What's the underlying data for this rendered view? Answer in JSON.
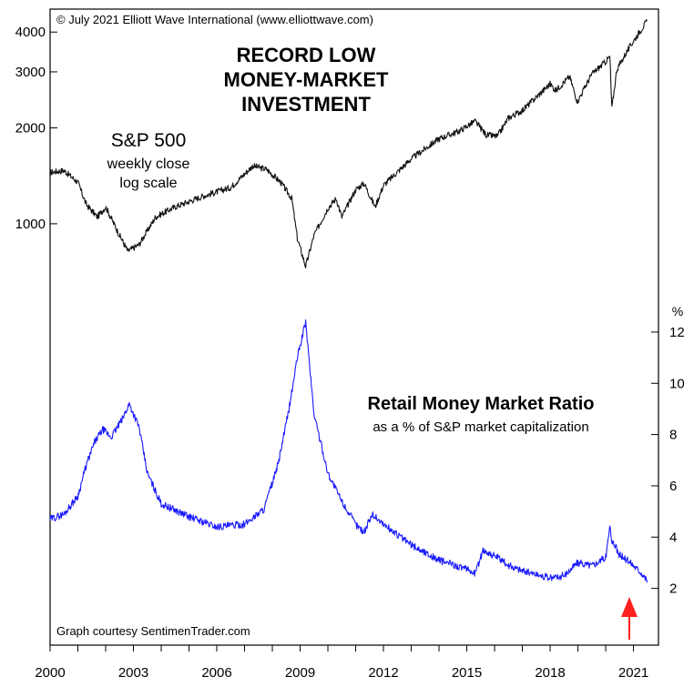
{
  "copyright": "© July 2021 Elliott Wave International (www.elliottwave.com)",
  "title_lines": [
    "RECORD LOW",
    "MONEY-MARKET",
    "INVESTMENT"
  ],
  "credit": "Graph courtesy SentimenTrader.com",
  "colors": {
    "sp500": "#111111",
    "ratio": "#1a1aff",
    "arrow": "#ff2020",
    "axis": "#000000"
  },
  "chart_data": [
    {
      "type": "line",
      "title": "S&P 500",
      "subtitle_lines": [
        "weekly close",
        "log scale"
      ],
      "y_scale": "log",
      "ylim": [
        560,
        4600
      ],
      "ytick_values": [
        1000,
        2000,
        3000,
        4000
      ],
      "ytick_labels": [
        "1000",
        "2000",
        "3000",
        "4000"
      ],
      "x": [
        2000.0,
        2000.5,
        2001.0,
        2001.3,
        2001.7,
        2002.0,
        2002.5,
        2002.8,
        2003.2,
        2003.8,
        2004.5,
        2005.5,
        2006.5,
        2007.3,
        2007.8,
        2008.3,
        2008.7,
        2008.9,
        2009.2,
        2009.5,
        2010.0,
        2010.3,
        2010.5,
        2011.0,
        2011.3,
        2011.7,
        2012.0,
        2013.0,
        2014.0,
        2014.7,
        2015.3,
        2015.7,
        2016.1,
        2016.5,
        2017.0,
        2018.0,
        2018.2,
        2018.7,
        2018.98,
        2019.5,
        2020.0,
        2020.15,
        2020.22,
        2020.4,
        2020.7,
        2021.0,
        2021.5
      ],
      "values": [
        1450,
        1470,
        1350,
        1150,
        1050,
        1130,
        920,
        820,
        860,
        1050,
        1130,
        1220,
        1300,
        1520,
        1480,
        1350,
        1200,
        900,
        735,
        920,
        1120,
        1200,
        1050,
        1280,
        1340,
        1130,
        1320,
        1600,
        1850,
        1950,
        2100,
        1900,
        1880,
        2150,
        2270,
        2750,
        2620,
        2900,
        2420,
        2950,
        3230,
        3350,
        2300,
        3050,
        3400,
        3750,
        4350
      ]
    },
    {
      "type": "line",
      "title": "Retail Money Market Ratio",
      "subtitle": "as a % of S&P market capitalization",
      "y_unit_label": "%",
      "ylim": [
        0,
        12.6
      ],
      "ytick_values": [
        2,
        4,
        6,
        8,
        10,
        12
      ],
      "ytick_labels": [
        "2",
        "4",
        "6",
        "8",
        "10",
        "12"
      ],
      "x": [
        2000.0,
        2000.5,
        2001.0,
        2001.3,
        2001.6,
        2001.9,
        2002.2,
        2002.6,
        2002.85,
        2003.2,
        2003.5,
        2004.0,
        2005.0,
        2006.0,
        2007.0,
        2007.7,
        2008.2,
        2008.6,
        2008.9,
        2009.2,
        2009.5,
        2010.0,
        2010.5,
        2011.0,
        2011.3,
        2011.6,
        2012.0,
        2013.0,
        2014.0,
        2014.6,
        2015.3,
        2015.6,
        2016.1,
        2016.5,
        2017.0,
        2018.0,
        2018.5,
        2018.98,
        2019.5,
        2020.0,
        2020.15,
        2020.22,
        2020.5,
        2020.9,
        2021.3,
        2021.5
      ],
      "values": [
        4.7,
        4.9,
        5.6,
        6.8,
        7.7,
        8.2,
        7.9,
        8.6,
        9.2,
        8.3,
        6.5,
        5.3,
        4.8,
        4.4,
        4.5,
        5.1,
        6.8,
        9.0,
        11.0,
        12.4,
        8.8,
        6.5,
        5.4,
        4.5,
        4.2,
        4.9,
        4.5,
        3.7,
        3.1,
        2.9,
        2.6,
        3.5,
        3.2,
        2.9,
        2.7,
        2.4,
        2.5,
        3.0,
        2.9,
        3.2,
        4.4,
        3.9,
        3.3,
        3.0,
        2.6,
        2.3
      ]
    }
  ],
  "x_axis": {
    "xlim": [
      2000,
      2021.9
    ],
    "tick_values": [
      2000,
      2003,
      2006,
      2009,
      2012,
      2015,
      2018,
      2021
    ],
    "tick_labels": [
      "2000",
      "2003",
      "2006",
      "2009",
      "2012",
      "2015",
      "2018",
      "2021"
    ]
  }
}
